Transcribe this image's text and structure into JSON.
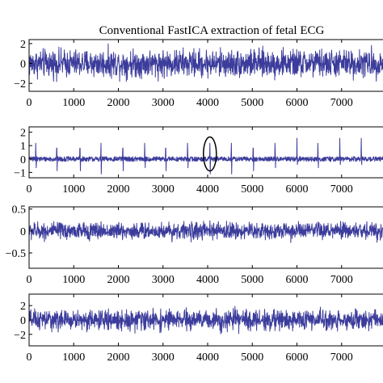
{
  "title": "Conventional FastICA extraction of fetal ECG",
  "line_color": "#3c3c9c",
  "chart_data": [
    {
      "type": "line",
      "title": "Conventional FastICA extraction of fetal ECG",
      "xlabel": "",
      "ylabel": "",
      "xlim": [
        0,
        8000
      ],
      "ylim": [
        -2.8,
        2.4
      ],
      "xticks": [
        0,
        1000,
        2000,
        3000,
        4000,
        5000,
        6000,
        7000
      ],
      "xtick_labels": [
        "0",
        "1000",
        "2000",
        "3000",
        "4000",
        "5000",
        "6000",
        "7000"
      ],
      "yticks": [
        2,
        0,
        -2
      ],
      "ytick_labels": [
        "2",
        "0",
        "−2"
      ],
      "grid": false,
      "series": [
        {
          "signal_kind": "noise",
          "amplitude": 1.0,
          "peak_x": [],
          "peak_height": 0
        }
      ]
    },
    {
      "type": "line",
      "xlabel": "",
      "ylabel": "",
      "xlim": [
        0,
        8000
      ],
      "ylim": [
        -1.4,
        2.4
      ],
      "xticks": [
        0,
        1000,
        2000,
        3000,
        4000,
        5000,
        6000,
        7000
      ],
      "xtick_labels": [
        "0",
        "1000",
        "2000",
        "3000",
        "4000",
        "5000",
        "6000",
        "7000"
      ],
      "yticks": [
        2,
        1,
        0,
        -1
      ],
      "ytick_labels": [
        "2",
        "1",
        "0",
        "−1"
      ],
      "grid": false,
      "annotation": {
        "shape": "ellipse",
        "center_x": 4050
      },
      "series": [
        {
          "signal_kind": "ecg",
          "amplitude": 0.18,
          "peak_x": [
            150,
            620,
            1140,
            1610,
            2100,
            2590,
            3060,
            3550,
            4050,
            4530,
            5020,
            5510,
            6000,
            6470,
            6960,
            7440
          ],
          "peak_height": 1.55,
          "trough_depth": -1.3
        }
      ]
    },
    {
      "type": "line",
      "xlabel": "",
      "ylabel": "",
      "xlim": [
        0,
        8000
      ],
      "ylim": [
        -0.85,
        0.55
      ],
      "xticks": [
        0,
        1000,
        2000,
        3000,
        4000,
        5000,
        6000,
        7000
      ],
      "xtick_labels": [
        "0",
        "1000",
        "2000",
        "3000",
        "4000",
        "5000",
        "6000",
        "7000"
      ],
      "yticks": [
        0.5,
        0,
        -0.5
      ],
      "ytick_labels": [
        "0.5",
        "0",
        "−0.5"
      ],
      "grid": false,
      "series": [
        {
          "signal_kind": "noise",
          "amplitude": 0.14,
          "peak_x": [],
          "peak_height": 0
        }
      ]
    },
    {
      "type": "line",
      "xlabel": "",
      "ylabel": "",
      "xlim": [
        0,
        8000
      ],
      "ylim": [
        -3.6,
        3.6
      ],
      "xticks": [
        0,
        1000,
        2000,
        3000,
        4000,
        5000,
        6000,
        7000
      ],
      "xtick_labels": [
        "0",
        "1000",
        "2000",
        "3000",
        "4000",
        "5000",
        "6000",
        "7000"
      ],
      "yticks": [
        2,
        0,
        -2
      ],
      "ytick_labels": [
        "2",
        "0",
        "−2"
      ],
      "grid": false,
      "series": [
        {
          "signal_kind": "noise",
          "amplitude": 1.0,
          "peak_x": [],
          "peak_height": 0
        }
      ]
    }
  ]
}
